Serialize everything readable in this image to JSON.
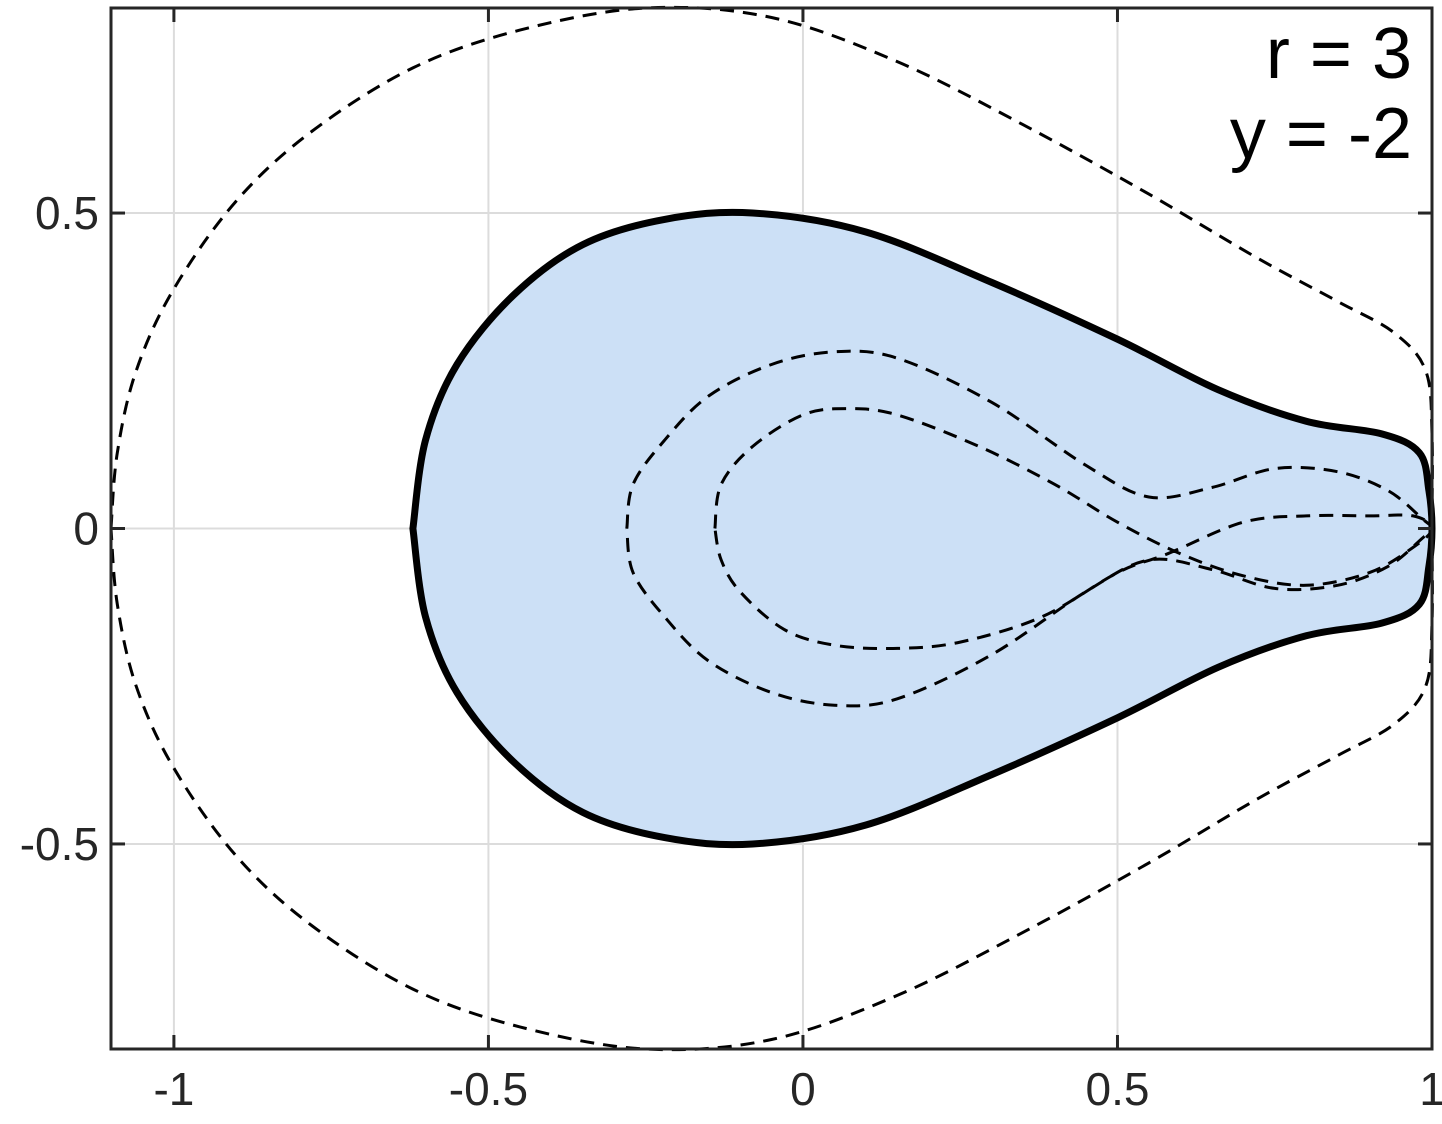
{
  "chart_data": {
    "type": "line",
    "title": "",
    "xlabel": "",
    "ylabel": "",
    "xlim": [
      -1.1,
      1.0
    ],
    "ylim": [
      -0.825,
      0.825
    ],
    "xticks": [
      -1,
      -0.5,
      0,
      0.5,
      1
    ],
    "yticks": [
      -0.5,
      0,
      0.5
    ],
    "xtick_labels": [
      "-1",
      "-0.5",
      "0",
      "0.5",
      "1"
    ],
    "ytick_labels": [
      "-0.5",
      "0",
      "0.5"
    ],
    "grid": true,
    "annotations": [
      "r = 3",
      "y = -2"
    ],
    "colors": {
      "fill": "#cce0f6",
      "boundary": "#000000",
      "dashed": "#000000",
      "grid": "#dcdcdc"
    },
    "series": [
      {
        "style": "filled-solid",
        "points": [
          [
            -0.62,
            0
          ],
          [
            -0.6,
            0.14
          ],
          [
            -0.55,
            0.26
          ],
          [
            -0.46,
            0.37
          ],
          [
            -0.35,
            0.45
          ],
          [
            -0.22,
            0.49
          ],
          [
            -0.08,
            0.5
          ],
          [
            0.1,
            0.47
          ],
          [
            0.3,
            0.39
          ],
          [
            0.5,
            0.3
          ],
          [
            0.66,
            0.22
          ],
          [
            0.8,
            0.17
          ],
          [
            0.92,
            0.15
          ],
          [
            0.98,
            0.12
          ],
          [
            0.995,
            0.06
          ],
          [
            1.0,
            0
          ],
          [
            0.995,
            -0.06
          ],
          [
            0.98,
            -0.12
          ],
          [
            0.92,
            -0.15
          ],
          [
            0.8,
            -0.17
          ],
          [
            0.66,
            -0.22
          ],
          [
            0.5,
            -0.3
          ],
          [
            0.3,
            -0.39
          ],
          [
            0.1,
            -0.47
          ],
          [
            -0.08,
            -0.5
          ],
          [
            -0.22,
            -0.49
          ],
          [
            -0.35,
            -0.45
          ],
          [
            -0.46,
            -0.37
          ],
          [
            -0.55,
            -0.26
          ],
          [
            -0.6,
            -0.14
          ],
          [
            -0.62,
            0
          ]
        ]
      },
      {
        "style": "dashed",
        "points": [
          [
            -1.1,
            0
          ],
          [
            -1.09,
            0.12
          ],
          [
            -1.06,
            0.25
          ],
          [
            -1.0,
            0.38
          ],
          [
            -0.9,
            0.52
          ],
          [
            -0.78,
            0.63
          ],
          [
            -0.62,
            0.73
          ],
          [
            -0.45,
            0.79
          ],
          [
            -0.25,
            0.825
          ],
          [
            -0.05,
            0.81
          ],
          [
            0.15,
            0.74
          ],
          [
            0.35,
            0.64
          ],
          [
            0.55,
            0.53
          ],
          [
            0.72,
            0.43
          ],
          [
            0.85,
            0.36
          ],
          [
            0.94,
            0.31
          ],
          [
            0.99,
            0.25
          ],
          [
            1.0,
            0.15
          ],
          [
            1.0,
            0
          ],
          [
            1.0,
            -0.15
          ],
          [
            0.99,
            -0.25
          ],
          [
            0.94,
            -0.31
          ],
          [
            0.85,
            -0.36
          ],
          [
            0.72,
            -0.43
          ],
          [
            0.55,
            -0.53
          ],
          [
            0.35,
            -0.64
          ],
          [
            0.15,
            -0.74
          ],
          [
            -0.05,
            -0.81
          ],
          [
            -0.25,
            -0.825
          ],
          [
            -0.45,
            -0.79
          ],
          [
            -0.62,
            -0.73
          ],
          [
            -0.78,
            -0.63
          ],
          [
            -0.9,
            -0.52
          ],
          [
            -1.0,
            -0.38
          ],
          [
            -1.06,
            -0.25
          ],
          [
            -1.09,
            -0.12
          ],
          [
            -1.1,
            0
          ]
        ]
      },
      {
        "style": "dashed",
        "points": [
          [
            -0.28,
            0
          ],
          [
            -0.27,
            0.07
          ],
          [
            -0.22,
            0.14
          ],
          [
            -0.15,
            0.21
          ],
          [
            -0.05,
            0.26
          ],
          [
            0.05,
            0.28
          ],
          [
            0.15,
            0.27
          ],
          [
            0.3,
            0.2
          ],
          [
            0.45,
            0.1
          ],
          [
            0.55,
            0.05
          ],
          [
            0.65,
            0.065
          ],
          [
            0.75,
            0.095
          ],
          [
            0.85,
            0.09
          ],
          [
            0.93,
            0.06
          ],
          [
            0.985,
            0.015
          ],
          [
            1.0,
            0
          ],
          [
            0.985,
            -0.015
          ],
          [
            0.93,
            -0.06
          ],
          [
            0.85,
            -0.09
          ],
          [
            0.75,
            -0.095
          ],
          [
            0.65,
            -0.065
          ],
          [
            0.55,
            -0.05
          ],
          [
            0.45,
            -0.1
          ],
          [
            0.3,
            -0.2
          ],
          [
            0.15,
            -0.27
          ],
          [
            0.05,
            -0.28
          ],
          [
            -0.05,
            -0.26
          ],
          [
            -0.15,
            -0.21
          ],
          [
            -0.22,
            -0.14
          ],
          [
            -0.27,
            -0.07
          ],
          [
            -0.28,
            0
          ]
        ]
      },
      {
        "style": "dashed",
        "points": [
          [
            -0.14,
            0
          ],
          [
            -0.13,
            0.07
          ],
          [
            -0.08,
            0.13
          ],
          [
            0.0,
            0.18
          ],
          [
            0.07,
            0.19
          ],
          [
            0.15,
            0.18
          ],
          [
            0.28,
            0.13
          ],
          [
            0.4,
            0.07
          ],
          [
            0.5,
            0.01
          ],
          [
            0.6,
            -0.04
          ],
          [
            0.7,
            -0.075
          ],
          [
            0.8,
            -0.09
          ],
          [
            0.9,
            -0.07
          ],
          [
            0.97,
            -0.03
          ],
          [
            1.0,
            0
          ],
          [
            0.97,
            0.02
          ],
          [
            0.9,
            0.02
          ],
          [
            0.8,
            0.02
          ],
          [
            0.7,
            0.01
          ],
          [
            0.58,
            -0.04
          ],
          [
            0.5,
            -0.07
          ],
          [
            0.38,
            -0.14
          ],
          [
            0.25,
            -0.18
          ],
          [
            0.15,
            -0.19
          ],
          [
            0.05,
            -0.185
          ],
          [
            -0.03,
            -0.16
          ],
          [
            -0.1,
            -0.1
          ],
          [
            -0.13,
            -0.05
          ],
          [
            -0.14,
            0
          ]
        ]
      }
    ]
  }
}
